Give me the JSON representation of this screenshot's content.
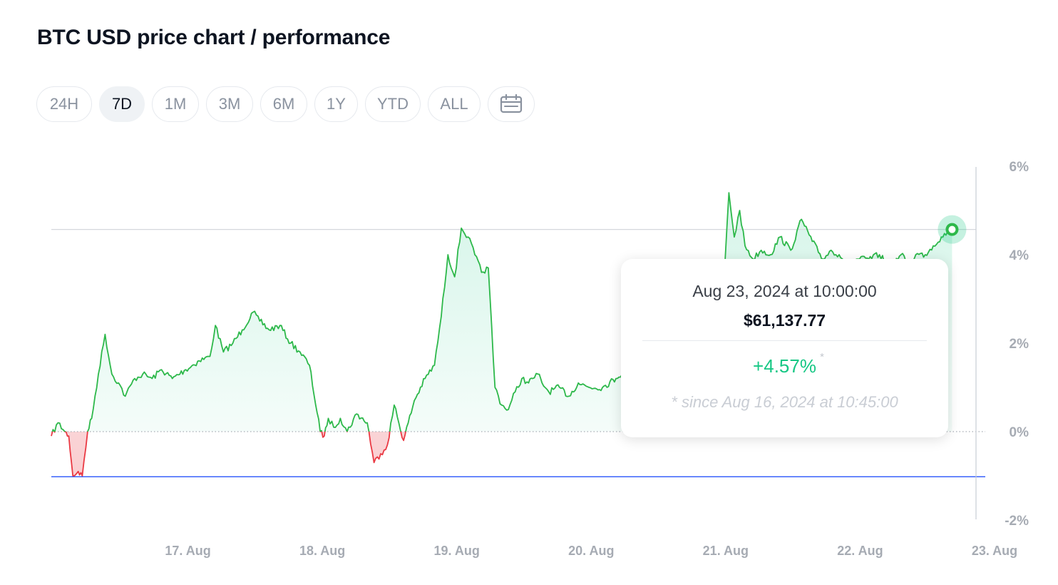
{
  "header": {
    "title": "BTC USD price chart / performance"
  },
  "ranges": {
    "items": [
      "24H",
      "7D",
      "1M",
      "3M",
      "6M",
      "1Y",
      "YTD",
      "ALL"
    ],
    "active": "7D",
    "calendar_icon": "calendar-icon"
  },
  "tooltip": {
    "date": "Aug 23, 2024 at 10:00:00",
    "price": "$61,137.77",
    "change": "+4.57%",
    "change_marker": "*",
    "since": "* since Aug 16, 2024 at 10:45:00"
  },
  "colors": {
    "positive": "#16c784",
    "positive_line": "#2db84a",
    "negative": "#ea3943",
    "baseline_blue": "#3861fb"
  },
  "chart_data": {
    "type": "line",
    "y_unit": "%",
    "ylim": [
      -2,
      6
    ],
    "y_ticks": [
      "6%",
      "4%",
      "2%",
      "0%",
      "-2%"
    ],
    "x_ticks": [
      "17. Aug",
      "18. Aug",
      "19. Aug",
      "20. Aug",
      "21. Aug",
      "22. Aug",
      "23. Aug"
    ],
    "reference_lines": {
      "zero": 0,
      "current": 4.57,
      "low": -1.02
    },
    "series": [
      {
        "x": [
          0.0,
          0.05,
          0.1,
          0.13,
          0.16,
          0.2,
          0.23,
          0.27,
          0.3,
          0.35,
          0.4,
          0.45,
          0.5,
          0.55,
          0.62,
          0.68,
          0.75,
          0.82,
          0.9,
          1.0,
          1.1,
          1.18,
          1.22,
          1.28,
          1.35,
          1.42,
          1.5,
          1.55,
          1.62,
          1.7,
          1.78,
          1.85,
          1.92,
          2.0,
          2.03,
          2.06,
          2.1,
          2.15,
          2.2,
          2.27,
          2.35,
          2.4,
          2.45,
          2.5,
          2.55,
          2.62,
          2.7,
          2.78,
          2.85,
          2.9,
          2.95,
          3.0,
          3.05,
          3.1,
          3.15,
          3.2,
          3.25,
          3.3,
          3.35,
          3.4,
          3.45,
          3.5,
          3.55,
          3.58,
          3.62,
          3.65,
          3.7,
          3.78,
          3.85,
          3.92,
          4.0,
          4.1,
          4.2,
          4.3,
          4.4,
          4.5,
          4.6,
          4.7,
          4.8,
          4.9,
          5.0,
          5.04,
          5.08,
          5.12,
          5.16,
          5.22,
          5.28,
          5.35,
          5.42,
          5.5,
          5.58,
          5.66,
          5.74,
          5.8,
          5.86,
          5.92,
          6.0,
          6.08,
          6.16,
          6.24,
          6.32,
          6.38,
          6.43,
          6.5,
          6.56,
          6.62,
          6.7
        ],
        "y": [
          -0.1,
          0.2,
          0.0,
          -0.1,
          -1.0,
          -0.9,
          -1.0,
          0.0,
          0.3,
          1.3,
          2.2,
          1.3,
          1.1,
          0.8,
          1.2,
          1.3,
          1.2,
          1.4,
          1.2,
          1.4,
          1.6,
          1.7,
          2.4,
          1.8,
          2.0,
          2.3,
          2.7,
          2.5,
          2.3,
          2.4,
          2.0,
          1.8,
          1.5,
          0.0,
          -0.1,
          0.3,
          0.1,
          0.3,
          0.0,
          0.4,
          0.2,
          -0.7,
          -0.5,
          -0.3,
          0.6,
          -0.2,
          0.7,
          1.2,
          1.5,
          2.6,
          4.0,
          3.5,
          4.6,
          4.4,
          4.0,
          3.6,
          3.7,
          1.0,
          0.6,
          0.5,
          0.9,
          1.2,
          1.1,
          1.2,
          1.3,
          1.1,
          0.9,
          1.0,
          0.8,
          1.1,
          1.0,
          1.0,
          1.2,
          1.5,
          1.3,
          1.6,
          1.9,
          2.3,
          2.6,
          3.0,
          3.2,
          5.4,
          4.4,
          5.0,
          4.2,
          3.9,
          4.1,
          4.0,
          4.4,
          4.1,
          4.8,
          4.3,
          3.9,
          4.1,
          4.0,
          3.8,
          3.9,
          3.9,
          4.0,
          3.7,
          4.0,
          3.8,
          4.0,
          4.0,
          4.2,
          4.4,
          4.57
        ]
      }
    ]
  }
}
